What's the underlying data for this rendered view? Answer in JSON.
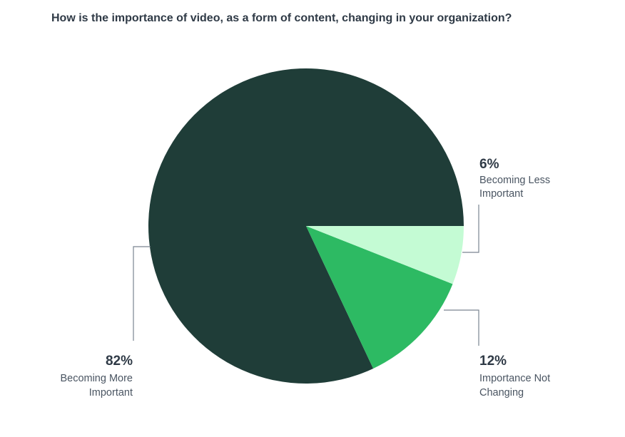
{
  "chart_data": {
    "type": "pie",
    "title": "How is the importance of video, as a form of content, changing in your organization?",
    "categories": [
      "Becoming More Important",
      "Importance Not Changing",
      "Becoming Less Important"
    ],
    "values": [
      82,
      12,
      6
    ],
    "value_labels": [
      "82%",
      "12%",
      "6%"
    ],
    "label_lines": [
      [
        "Becoming More",
        "Important"
      ],
      [
        "Importance Not",
        "Changing"
      ],
      [
        "Becoming Less",
        "Important"
      ]
    ],
    "colors": [
      "#1f3d38",
      "#2dba63",
      "#c4fbd4"
    ],
    "label_color": "#2f3a46",
    "leader_color": "#7a8591",
    "legend": "none"
  }
}
